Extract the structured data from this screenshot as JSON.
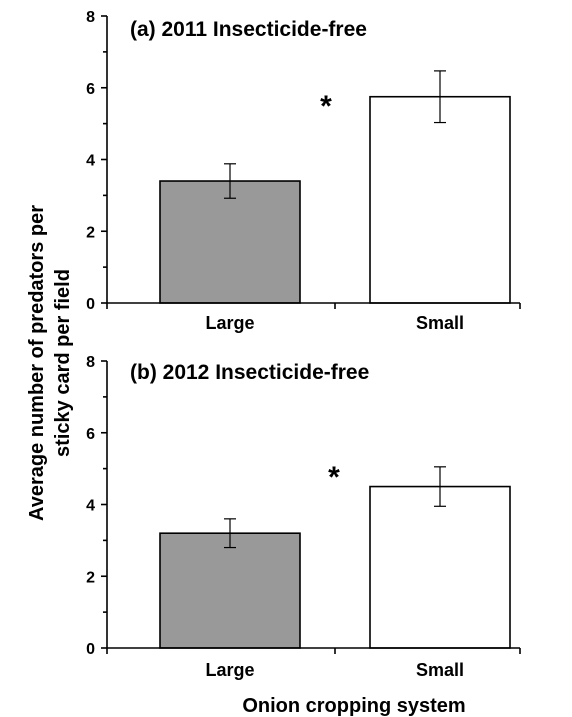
{
  "chart_data": [
    {
      "type": "bar",
      "title": "(a) 2011 Insecticide-free",
      "categories": [
        "Large",
        "Small"
      ],
      "values": [
        3.4,
        5.75
      ],
      "errors": [
        0.48,
        0.72
      ],
      "colors": [
        "#999999",
        "#ffffff"
      ],
      "ylim": [
        0,
        8
      ],
      "yticks": [
        "0",
        "2",
        "4",
        "6",
        "8"
      ],
      "significance": "*"
    },
    {
      "type": "bar",
      "title": "(b) 2012 Insecticide-free",
      "categories": [
        "Large",
        "Small"
      ],
      "values": [
        3.2,
        4.5
      ],
      "errors": [
        0.4,
        0.55
      ],
      "colors": [
        "#999999",
        "#ffffff"
      ],
      "ylim": [
        0,
        8
      ],
      "yticks": [
        "0",
        "2",
        "4",
        "6",
        "8"
      ],
      "significance": "*"
    }
  ],
  "ylabel_lines": [
    "Average number of predators per",
    "sticky card per field"
  ],
  "xlabel": "Onion cropping system"
}
